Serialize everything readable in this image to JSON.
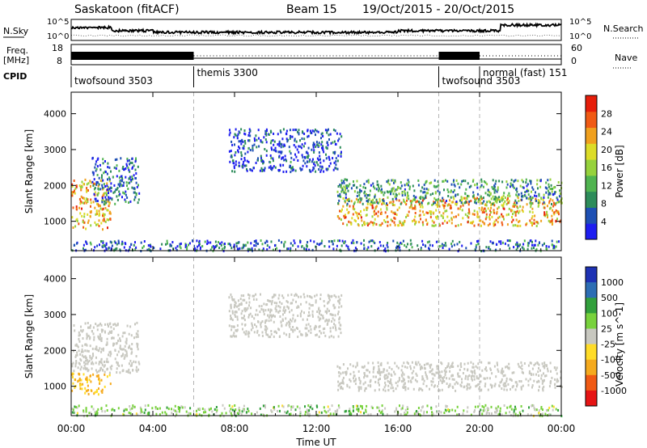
{
  "header": {
    "site": "Saskatoon (fitACF)",
    "beam": "Beam 15",
    "dates": "19/Oct/2015 - 20/Oct/2015"
  },
  "top_panels": {
    "nsky_label": "N.Sky",
    "nsearch_label": "N.Search",
    "nsky_ticks": [
      "10^5",
      "10^0"
    ],
    "nsearch_ticks": [
      "10^5",
      "10^0"
    ],
    "freq_label_1": "Freq.",
    "freq_label_2": "[MHz]",
    "freq_ticks": [
      "18",
      "8"
    ],
    "nave_ticks": [
      "60",
      "0"
    ],
    "nave_label": "Nave",
    "cpid_label": "CPID"
  },
  "cpid_segments": [
    {
      "label": "twofsound 3503",
      "start": 0,
      "end": 6
    },
    {
      "label": "themis 3300",
      "start": 6,
      "end": 18
    },
    {
      "label": "twofsound 3503",
      "start": 18,
      "end": 20
    },
    {
      "label": "normal (fast) 151",
      "start": 20,
      "end": 24
    }
  ],
  "x_axis": {
    "label": "Time UT",
    "ticks": [
      "00:00",
      "04:00",
      "08:00",
      "12:00",
      "16:00",
      "20:00",
      "00:00"
    ]
  },
  "y_axis": {
    "label": "Slant Range [km]",
    "ticks": [
      "1000",
      "2000",
      "3000",
      "4000"
    ]
  },
  "power_colorbar": {
    "label": "Power [dB]",
    "ticks": [
      "4",
      "8",
      "12",
      "16",
      "20",
      "24",
      "28"
    ],
    "colors": [
      "#1e1ef0",
      "#1e50b4",
      "#2d8c5a",
      "#50b450",
      "#96d23c",
      "#dcdc28",
      "#f0a01e",
      "#f05a14",
      "#e61e0a"
    ]
  },
  "velocity_colorbar": {
    "label": "Velocity [m s^-1]",
    "ticks": [
      "1000",
      "500",
      "100",
      "25",
      "-25",
      "-100",
      "-500",
      "-1000"
    ],
    "colors": [
      "#1e32b4",
      "#2d6eb4",
      "#32a03c",
      "#78d23c",
      "#c8c8c0",
      "#ffdc28",
      "#f5aa1e",
      "#f05a14",
      "#e61414"
    ]
  },
  "chart_data": {
    "type": "heatmap",
    "title": "Saskatoon (fitACF)",
    "subtitle": "Beam 15  19/Oct/2015 - 20/Oct/2015",
    "xlabel": "Time UT",
    "ylabel": "Slant Range [km]",
    "xlim": [
      0,
      24
    ],
    "ylim": [
      180,
      4600
    ],
    "mode_change_times_ut": [
      6,
      18,
      20
    ],
    "panels": [
      {
        "name": "Power",
        "units": "dB",
        "clim": [
          0,
          32
        ],
        "regions": [
          {
            "t": [
              0.0,
              1.9
            ],
            "r": [
              800,
              2200
            ],
            "value": 22
          },
          {
            "t": [
              1.0,
              3.3
            ],
            "r": [
              1500,
              2800
            ],
            "value": 6
          },
          {
            "t": [
              7.7,
              13.2
            ],
            "r": [
              2400,
              3600
            ],
            "value": 4
          },
          {
            "t": [
              13.0,
              24.0
            ],
            "r": [
              900,
              1700
            ],
            "value": 22
          },
          {
            "t": [
              13.0,
              24.0
            ],
            "r": [
              1500,
              2200
            ],
            "value": 10
          },
          {
            "t": [
              0.0,
              24.0
            ],
            "r": [
              200,
              500
            ],
            "value": 6
          }
        ]
      },
      {
        "name": "Velocity",
        "units": "m s^-1",
        "clim": [
          -1000,
          1000
        ],
        "regions": [
          {
            "t": [
              0.0,
              1.9
            ],
            "r": [
              800,
              1400
            ],
            "value": -100
          },
          {
            "t": [
              0.0,
              3.3
            ],
            "r": [
              1400,
              2800
            ],
            "value": 0
          },
          {
            "t": [
              7.7,
              13.2
            ],
            "r": [
              2400,
              3600
            ],
            "value": 0
          },
          {
            "t": [
              13.0,
              24.0
            ],
            "r": [
              900,
              1700
            ],
            "value": 0
          },
          {
            "t": [
              0.0,
              24.0
            ],
            "r": [
              200,
              500
            ],
            "value": 50
          }
        ]
      }
    ]
  }
}
